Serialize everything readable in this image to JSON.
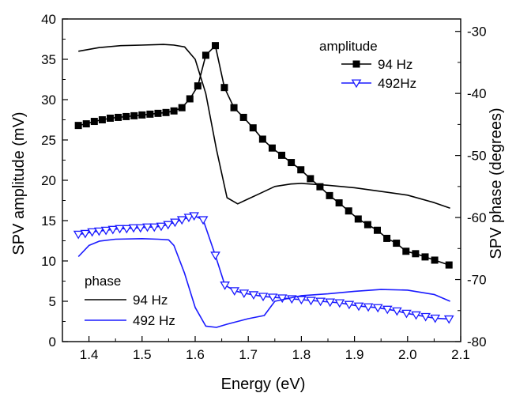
{
  "chart_data": {
    "type": "line",
    "xlabel": "Energy (eV)",
    "ylabel_left": "SPV amplitude (mV)",
    "ylabel_right": "SPV phase (degrees)",
    "xlim": [
      1.35,
      2.1
    ],
    "ylim_left": [
      0,
      40
    ],
    "ylim_right": [
      -80,
      -28
    ],
    "x_ticks": [
      "1.4",
      "1.5",
      "1.6",
      "1.7",
      "1.8",
      "1.9",
      "2.0",
      "2.1"
    ],
    "y_ticks_left": [
      "0",
      "5",
      "10",
      "15",
      "20",
      "25",
      "30",
      "35",
      "40"
    ],
    "y_ticks_right": [
      "-80",
      "-70",
      "-60",
      "-50",
      "-40",
      "-30"
    ],
    "colors": {
      "black": "#000000",
      "blue": "#1a1aff"
    },
    "legend_amplitude": {
      "title": "amplitude",
      "items": [
        "94 Hz",
        "492Hz"
      ]
    },
    "legend_phase": {
      "title": "phase",
      "items": [
        "94 Hz",
        "492 Hz"
      ]
    },
    "series": [
      {
        "name": "94 Hz",
        "group": "amplitude",
        "axis": "left",
        "color": "#000000",
        "marker": "square",
        "x": [
          1.38,
          1.395,
          1.41,
          1.425,
          1.44,
          1.455,
          1.47,
          1.485,
          1.5,
          1.515,
          1.53,
          1.545,
          1.56,
          1.575,
          1.59,
          1.605,
          1.62,
          1.638,
          1.655,
          1.673,
          1.691,
          1.709,
          1.727,
          1.745,
          1.763,
          1.781,
          1.799,
          1.817,
          1.835,
          1.853,
          1.871,
          1.889,
          1.907,
          1.925,
          1.943,
          1.961,
          1.979,
          1.997,
          2.015,
          2.033,
          2.051,
          2.078
        ],
        "y": [
          26.8,
          27.0,
          27.3,
          27.5,
          27.7,
          27.8,
          27.9,
          28.0,
          28.1,
          28.2,
          28.3,
          28.4,
          28.6,
          29.0,
          30.1,
          31.7,
          35.5,
          36.7,
          31.5,
          29.0,
          27.8,
          26.5,
          25.1,
          24.0,
          23.1,
          22.2,
          21.3,
          20.2,
          19.2,
          18.1,
          17.2,
          16.2,
          15.2,
          14.5,
          13.8,
          12.8,
          12.2,
          11.2,
          10.9,
          10.5,
          10.1,
          9.5
        ]
      },
      {
        "name": "492Hz",
        "group": "amplitude",
        "axis": "left",
        "color": "#1a1aff",
        "marker": "triangle-down-open",
        "x": [
          1.38,
          1.393,
          1.406,
          1.419,
          1.432,
          1.445,
          1.458,
          1.471,
          1.484,
          1.497,
          1.51,
          1.523,
          1.536,
          1.549,
          1.562,
          1.575,
          1.588,
          1.598,
          1.615,
          1.638,
          1.656,
          1.674,
          1.692,
          1.71,
          1.728,
          1.746,
          1.764,
          1.782,
          1.8,
          1.818,
          1.836,
          1.854,
          1.872,
          1.89,
          1.908,
          1.926,
          1.944,
          1.962,
          1.98,
          1.998,
          2.016,
          2.034,
          2.052,
          2.078
        ],
        "y": [
          13.3,
          13.4,
          13.6,
          13.7,
          13.8,
          13.9,
          14.0,
          14.0,
          14.1,
          14.1,
          14.2,
          14.2,
          14.3,
          14.5,
          14.8,
          15.1,
          15.4,
          15.6,
          15.1,
          10.7,
          7.0,
          6.3,
          6.0,
          5.8,
          5.6,
          5.5,
          5.4,
          5.3,
          5.2,
          5.1,
          5.0,
          4.9,
          4.8,
          4.6,
          4.4,
          4.3,
          4.2,
          4.0,
          3.8,
          3.5,
          3.3,
          3.1,
          2.9,
          2.8
        ]
      },
      {
        "name": "94 Hz",
        "group": "phase",
        "axis": "right",
        "color": "#000000",
        "marker": "none",
        "x": [
          1.38,
          1.42,
          1.46,
          1.5,
          1.54,
          1.56,
          1.58,
          1.6,
          1.62,
          1.64,
          1.66,
          1.68,
          1.7,
          1.72,
          1.75,
          1.78,
          1.8,
          1.85,
          1.9,
          1.95,
          2.0,
          2.05,
          2.08
        ],
        "y": [
          -33.2,
          -32.6,
          -32.3,
          -32.2,
          -32.1,
          -32.2,
          -32.5,
          -34.5,
          -40.0,
          -49.0,
          -56.8,
          -57.8,
          -57.0,
          -56.2,
          -55.0,
          -54.6,
          -54.5,
          -54.8,
          -55.2,
          -55.8,
          -56.4,
          -57.6,
          -58.5
        ]
      },
      {
        "name": "492 Hz",
        "group": "phase",
        "axis": "right",
        "color": "#1a1aff",
        "marker": "none",
        "x": [
          1.38,
          1.4,
          1.42,
          1.45,
          1.5,
          1.53,
          1.55,
          1.56,
          1.58,
          1.6,
          1.62,
          1.64,
          1.66,
          1.7,
          1.73,
          1.75,
          1.8,
          1.85,
          1.9,
          1.95,
          2.0,
          2.05,
          2.08
        ],
        "y": [
          -66.3,
          -64.5,
          -63.8,
          -63.5,
          -63.4,
          -63.5,
          -63.6,
          -64.5,
          -69.0,
          -74.5,
          -77.5,
          -77.7,
          -77.2,
          -76.3,
          -75.8,
          -73.5,
          -72.6,
          -72.3,
          -71.9,
          -71.6,
          -71.7,
          -72.4,
          -73.5
        ]
      }
    ]
  }
}
